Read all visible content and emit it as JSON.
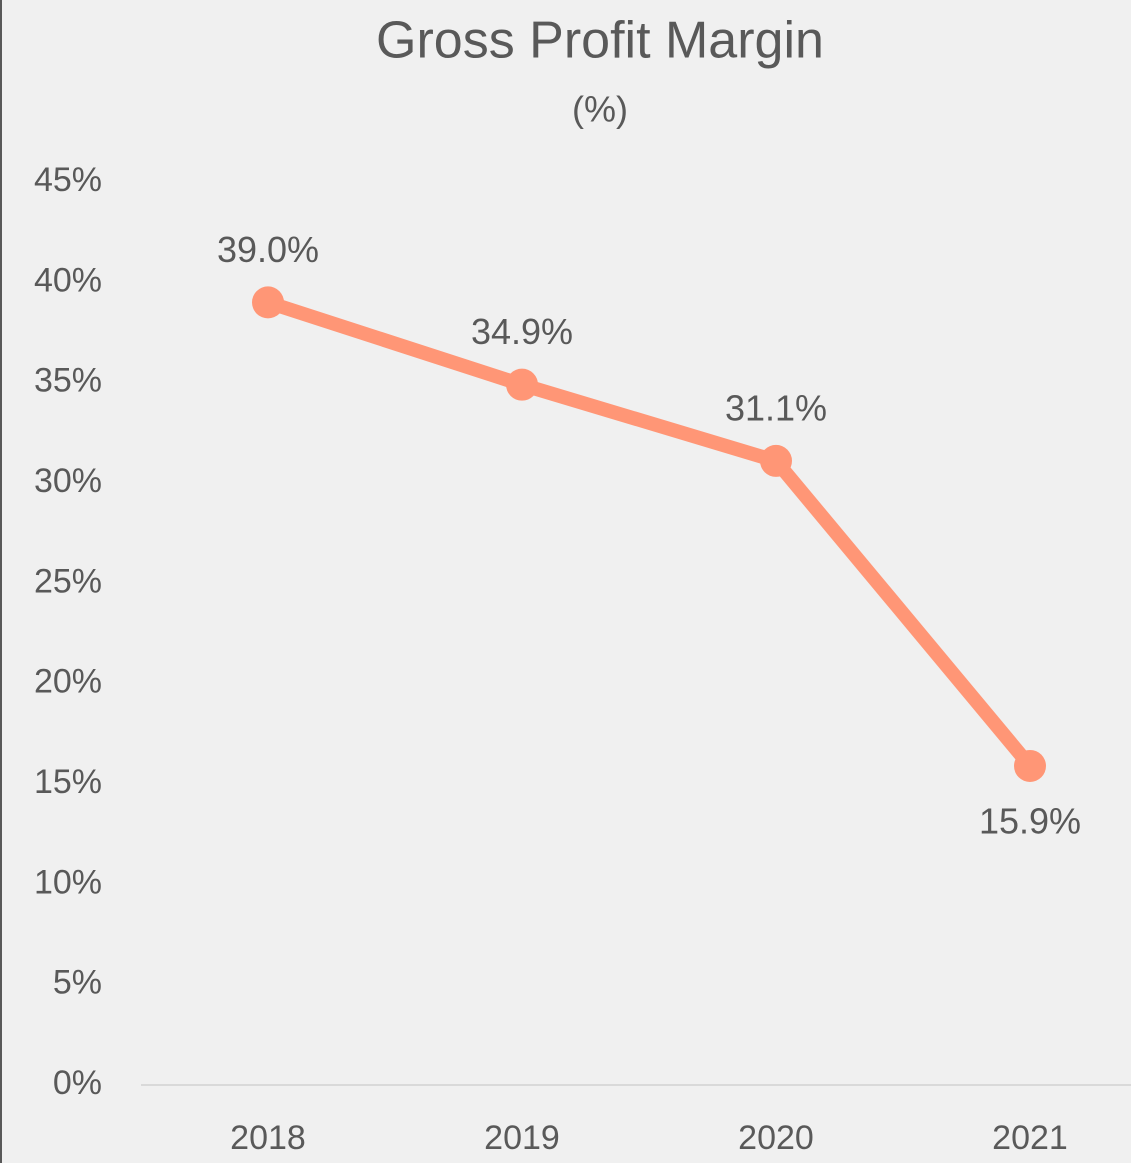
{
  "chart_data": {
    "type": "line",
    "title": "Gross Profit Margin",
    "subtitle": "(%)",
    "categories": [
      "2018",
      "2019",
      "2020",
      "2021"
    ],
    "series": [
      {
        "name": "Gross Profit Margin",
        "color": "#ff9676",
        "values": [
          39.0,
          34.9,
          31.1,
          15.9
        ],
        "value_labels": [
          "39.0%",
          "34.9%",
          "31.1%",
          "15.9%"
        ]
      }
    ],
    "ylim": [
      0,
      45
    ],
    "yticks": [
      {
        "value": 0,
        "label": "0%"
      },
      {
        "value": 5,
        "label": "5%"
      },
      {
        "value": 10,
        "label": "10%"
      },
      {
        "value": 15,
        "label": "15%"
      },
      {
        "value": 20,
        "label": "20%"
      },
      {
        "value": 25,
        "label": "25%"
      },
      {
        "value": 30,
        "label": "30%"
      },
      {
        "value": 35,
        "label": "35%"
      },
      {
        "value": 40,
        "label": "40%"
      },
      {
        "value": 45,
        "label": "45%"
      }
    ],
    "grid": false
  }
}
